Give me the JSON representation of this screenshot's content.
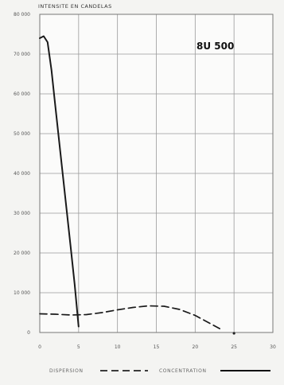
{
  "chart_data": {
    "type": "line",
    "title": "",
    "ylabel": "INTENSITE EN CANDELAS",
    "xlabel": "",
    "annotation": "8U 500",
    "xlim": [
      0,
      30
    ],
    "ylim": [
      0,
      80000
    ],
    "x_ticks": [
      "0",
      "5",
      "10",
      "15",
      "20",
      "25",
      "30"
    ],
    "y_ticks": [
      "0",
      "10 000",
      "20 000",
      "30 000",
      "40 000",
      "50 000",
      "60 000",
      "70 000",
      "80 000"
    ],
    "grid": true,
    "legend": [
      {
        "label": "DISPERSION",
        "style": "dashed"
      },
      {
        "label": "CONCENTRATION",
        "style": "solid"
      }
    ],
    "series": [
      {
        "name": "CONCENTRATION",
        "style": "solid",
        "points": [
          [
            0,
            74000
          ],
          [
            0.5,
            74500
          ],
          [
            1,
            73000
          ],
          [
            1.5,
            66000
          ],
          [
            2,
            57000
          ],
          [
            2.5,
            48000
          ],
          [
            3,
            39000
          ],
          [
            3.5,
            30000
          ],
          [
            4,
            21000
          ],
          [
            4.5,
            12000
          ],
          [
            5,
            1500
          ]
        ]
      },
      {
        "name": "DISPERSION",
        "style": "dashed",
        "points": [
          [
            0,
            4700
          ],
          [
            2,
            4600
          ],
          [
            4,
            4400
          ],
          [
            6,
            4500
          ],
          [
            8,
            5000
          ],
          [
            10,
            5700
          ],
          [
            12,
            6300
          ],
          [
            14,
            6700
          ],
          [
            16,
            6600
          ],
          [
            18,
            5800
          ],
          [
            20,
            4300
          ],
          [
            22,
            2200
          ],
          [
            23.5,
            600
          ]
        ]
      }
    ]
  }
}
